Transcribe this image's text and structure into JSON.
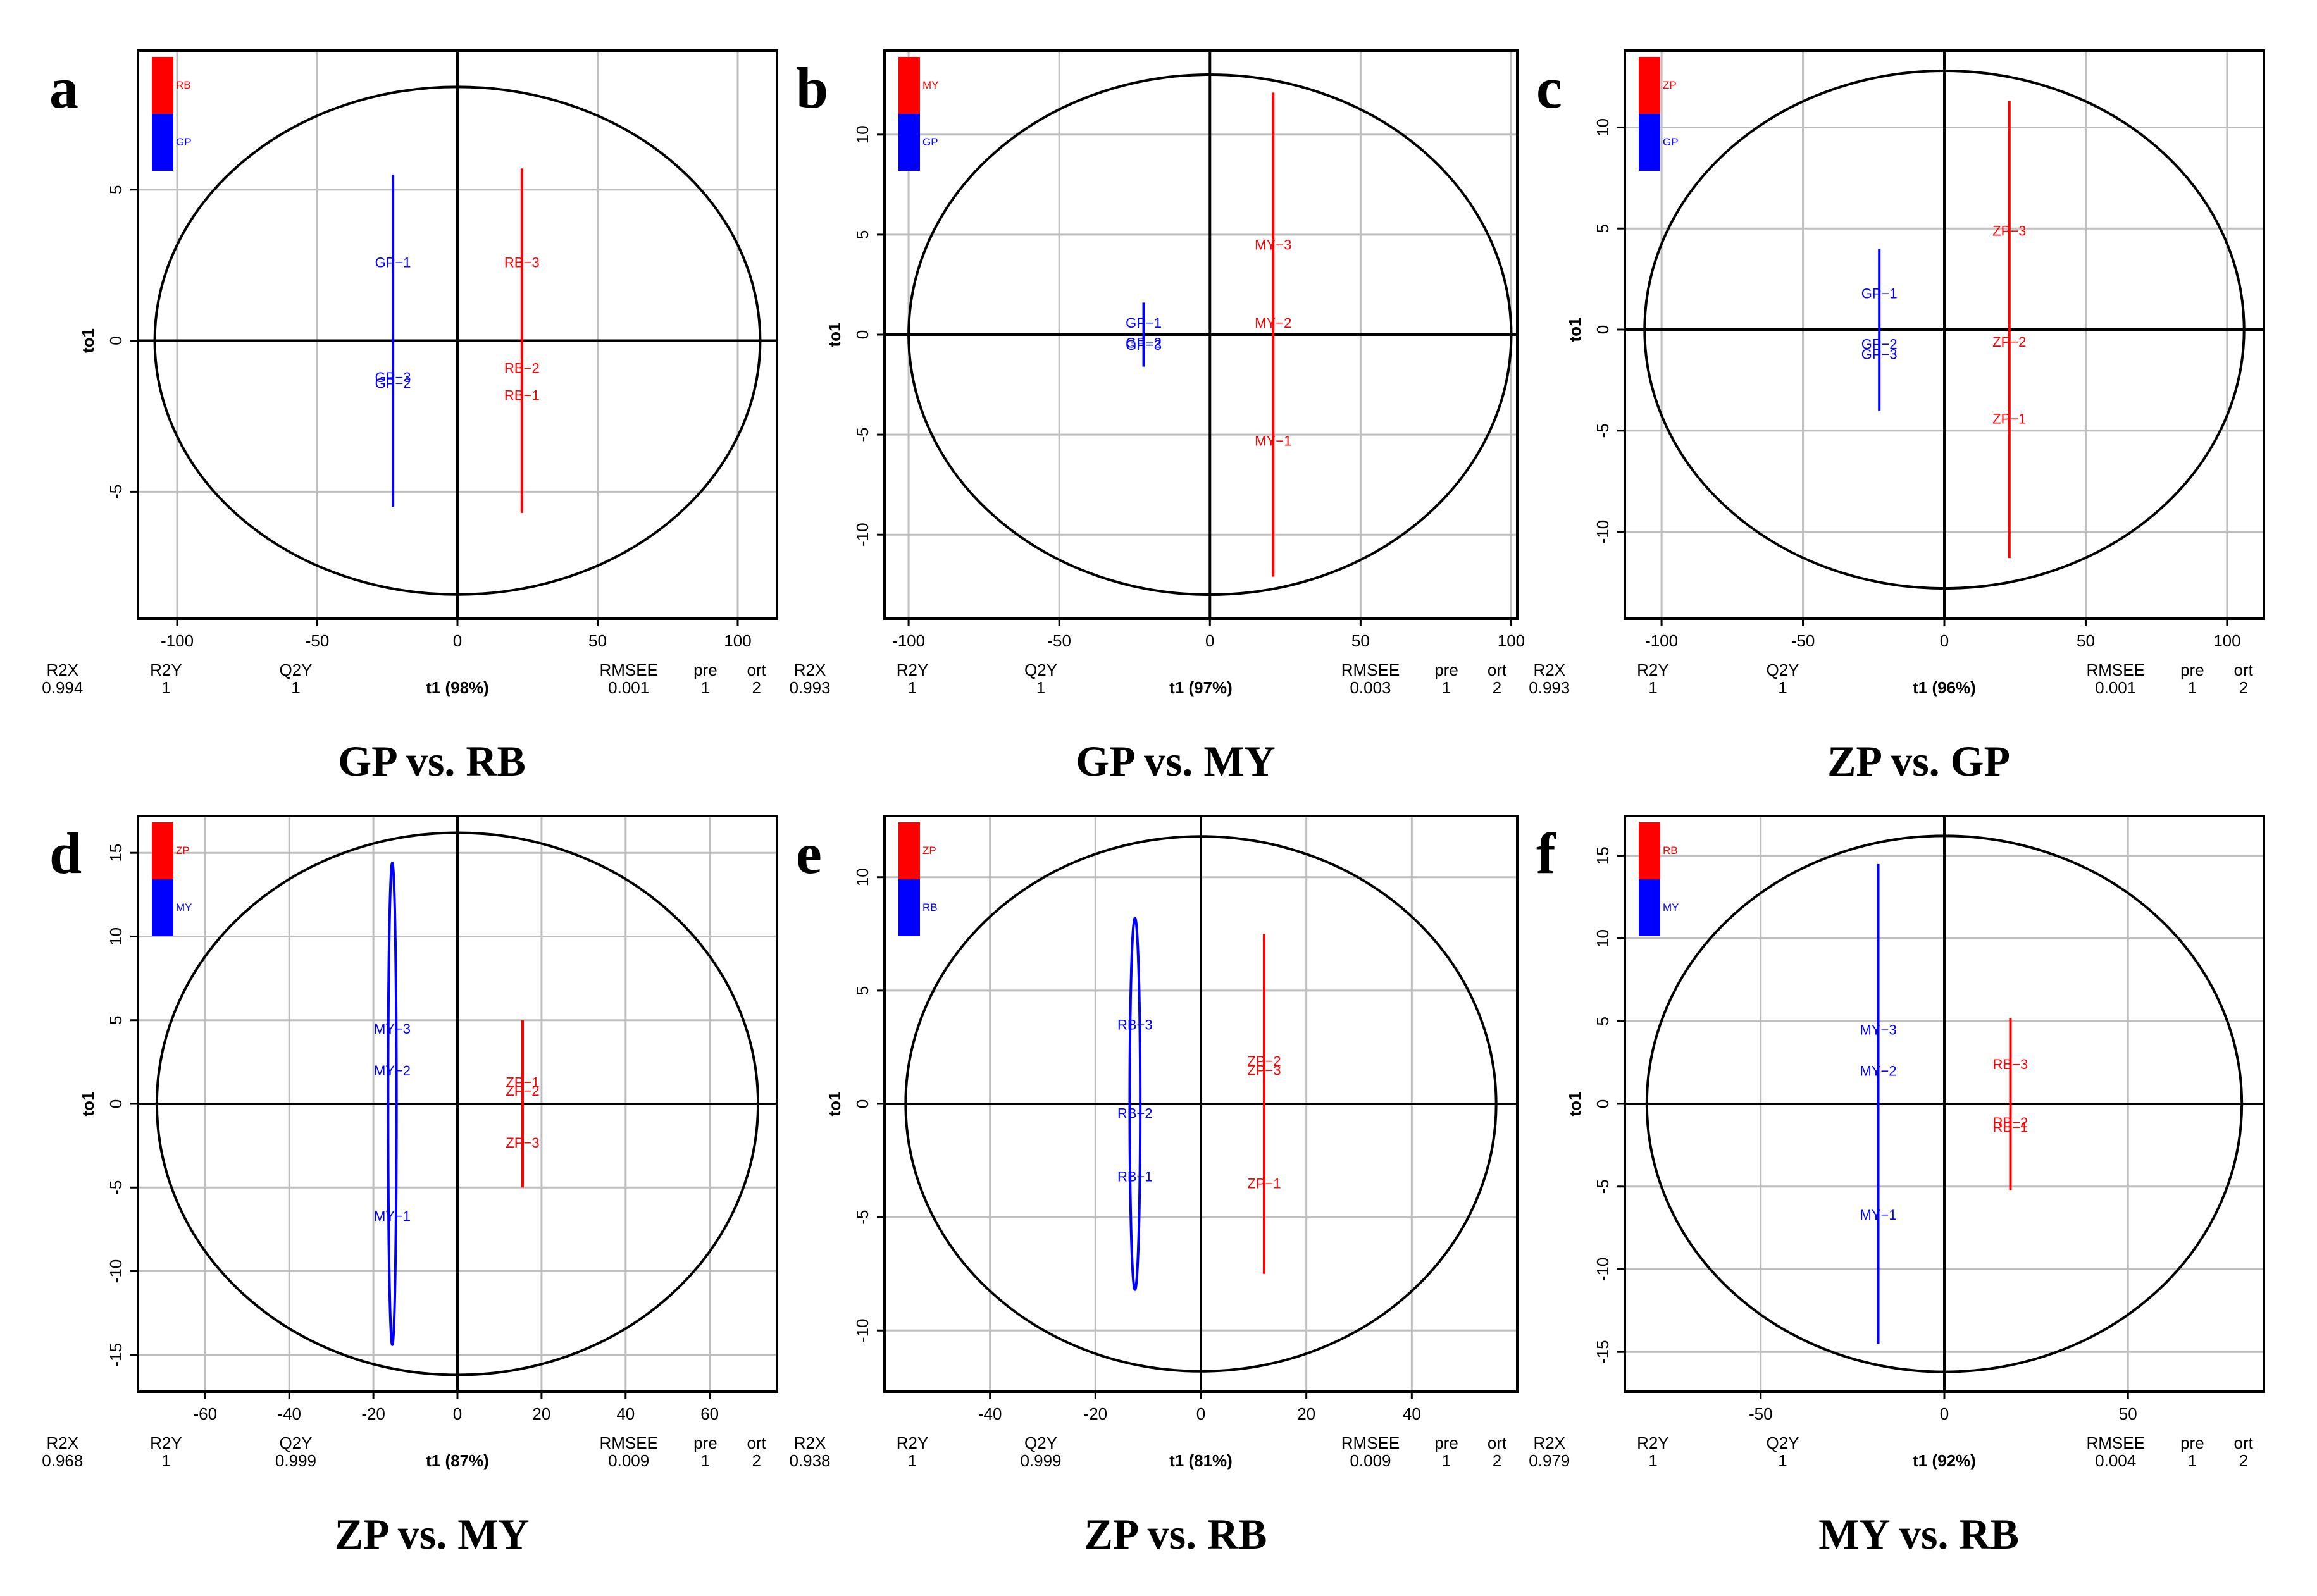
{
  "figure": {
    "colors": {
      "red": "#ff0000",
      "blue": "#0000ff",
      "black": "#000000",
      "grid": "#bebebe"
    },
    "stat_headers": [
      "R2X",
      "R2Y",
      "Q2Y",
      "RMSEE",
      "pre",
      "ort"
    ],
    "y_axis_label": "to1"
  },
  "chart_data": [
    {
      "type": "scatter",
      "letter": "a",
      "title": "GP vs. RB",
      "legend": [
        "RB",
        "GP"
      ],
      "xlim": [
        -114,
        114
      ],
      "ylim": [
        -9.2,
        9.6
      ],
      "xticks": [
        -100,
        -50,
        0,
        50,
        100
      ],
      "yticks": [
        -5,
        0,
        5
      ],
      "ellipse": {
        "a": 108,
        "b": 8.4
      },
      "xlabel": "t1 (98%)",
      "stats": {
        "R2X": "0.994",
        "R2Y": "1",
        "Q2Y": "1",
        "RMSEE": "0.001",
        "pre": "1",
        "ort": "2"
      },
      "groups": [
        {
          "color": "blue",
          "x": -23,
          "line": [
            -5.5,
            5.5
          ],
          "points": [
            {
              "label": "GP−1",
              "y": 2.6
            },
            {
              "label": "GP−3",
              "y": -1.2
            },
            {
              "label": "GP−2",
              "y": -1.4
            }
          ]
        },
        {
          "color": "red",
          "x": 23,
          "line": [
            -5.7,
            5.7
          ],
          "points": [
            {
              "label": "RB−3",
              "y": 2.6
            },
            {
              "label": "RB−2",
              "y": -0.9
            },
            {
              "label": "RB−1",
              "y": -1.8
            }
          ]
        }
      ]
    },
    {
      "type": "scatter",
      "letter": "b",
      "title": "GP vs. MY",
      "legend": [
        "MY",
        "GP"
      ],
      "xlim": [
        -108,
        102
      ],
      "ylim": [
        -14.2,
        14.2
      ],
      "xticks": [
        -100,
        -50,
        0,
        50,
        100
      ],
      "yticks": [
        -10,
        -5,
        0,
        5,
        10
      ],
      "ellipse": {
        "a": 100,
        "b": 13
      },
      "xlabel": "t1 (97%)",
      "stats": {
        "R2X": "0.993",
        "R2Y": "1",
        "Q2Y": "1",
        "RMSEE": "0.003",
        "pre": "1",
        "ort": "2"
      },
      "groups": [
        {
          "color": "blue",
          "x": -22,
          "line": [
            -1.6,
            1.6
          ],
          "points": [
            {
              "label": "GP−1",
              "y": 0.6
            },
            {
              "label": "GP−2",
              "y": -0.4
            },
            {
              "label": "GP−3",
              "y": -0.5
            }
          ]
        },
        {
          "color": "red",
          "x": 21,
          "line": [
            -12.1,
            12.1
          ],
          "points": [
            {
              "label": "MY−3",
              "y": 4.5
            },
            {
              "label": "MY−2",
              "y": 0.6
            },
            {
              "label": "MY−1",
              "y": -5.3
            }
          ]
        }
      ]
    },
    {
      "type": "scatter",
      "letter": "c",
      "title": "ZP vs. GP",
      "legend": [
        "ZP",
        "GP"
      ],
      "xlim": [
        -113,
        113
      ],
      "ylim": [
        -14.3,
        13.8
      ],
      "xticks": [
        -100,
        -50,
        0,
        50,
        100
      ],
      "yticks": [
        -10,
        -5,
        0,
        5,
        10
      ],
      "ellipse": {
        "a": 106,
        "b": 12.8
      },
      "xlabel": "t1 (96%)",
      "stats": {
        "R2X": "0.993",
        "R2Y": "1",
        "Q2Y": "1",
        "RMSEE": "0.001",
        "pre": "1",
        "ort": "2"
      },
      "groups": [
        {
          "color": "blue",
          "x": -23,
          "line": [
            -4,
            4
          ],
          "points": [
            {
              "label": "GP−1",
              "y": 1.8
            },
            {
              "label": "GP−2",
              "y": -0.7
            },
            {
              "label": "GP−3",
              "y": -1.2
            }
          ]
        },
        {
          "color": "red",
          "x": 23,
          "line": [
            -11.3,
            11.3
          ],
          "points": [
            {
              "label": "ZP−3",
              "y": 4.9
            },
            {
              "label": "ZP−2",
              "y": -0.6
            },
            {
              "label": "ZP−1",
              "y": -4.4
            }
          ]
        }
      ]
    },
    {
      "type": "scatter",
      "letter": "d",
      "title": "ZP vs. MY",
      "legend": [
        "ZP",
        "MY"
      ],
      "xlim": [
        -76,
        76
      ],
      "ylim": [
        -17.2,
        17.2
      ],
      "xticks": [
        -60,
        -40,
        -20,
        0,
        20,
        40,
        60
      ],
      "yticks": [
        -15,
        -10,
        -5,
        0,
        5,
        10,
        15
      ],
      "ellipse": {
        "a": 71.5,
        "b": 16.2
      },
      "xlabel": "t1 (87%)",
      "stats": {
        "R2X": "0.968",
        "R2Y": "1",
        "Q2Y": "0.999",
        "RMSEE": "0.009",
        "pre": "1",
        "ort": "2"
      },
      "groups": [
        {
          "color": "blue",
          "x": -15.5,
          "ellipseGroup": {
            "rx": 1.0,
            "ry": 14.4
          },
          "line": [
            -14.4,
            14.4
          ],
          "points": [
            {
              "label": "MY−3",
              "y": 4.5
            },
            {
              "label": "MY−2",
              "y": 2.0
            },
            {
              "label": "MY−1",
              "y": -6.7
            }
          ]
        },
        {
          "color": "red",
          "x": 15.5,
          "line": [
            -5,
            5
          ],
          "points": [
            {
              "label": "ZP−1",
              "y": 1.3
            },
            {
              "label": "ZP−2",
              "y": 0.8
            },
            {
              "label": "ZP−3",
              "y": -2.3
            }
          ]
        }
      ]
    },
    {
      "type": "scatter",
      "letter": "e",
      "title": "ZP vs. RB",
      "legend": [
        "ZP",
        "RB"
      ],
      "xlim": [
        -60,
        60
      ],
      "ylim": [
        -12.7,
        12.7
      ],
      "xticks": [
        -40,
        -20,
        0,
        20,
        40
      ],
      "yticks": [
        -10,
        -5,
        0,
        5,
        10
      ],
      "ellipse": {
        "a": 56,
        "b": 11.8
      },
      "xlabel": "t1 (81%)",
      "stats": {
        "R2X": "0.938",
        "R2Y": "1",
        "Q2Y": "0.999",
        "RMSEE": "0.009",
        "pre": "1",
        "ort": "2"
      },
      "groups": [
        {
          "color": "blue",
          "x": -12.5,
          "ellipseGroup": {
            "rx": 1.0,
            "ry": 8.2
          },
          "line": [
            -8.2,
            8.2
          ],
          "points": [
            {
              "label": "RB−3",
              "y": 3.5
            },
            {
              "label": "RB−2",
              "y": -0.4
            },
            {
              "label": "RB−1",
              "y": -3.2
            }
          ]
        },
        {
          "color": "red",
          "x": 12,
          "line": [
            -7.5,
            7.5
          ],
          "points": [
            {
              "label": "ZP−2",
              "y": 1.9
            },
            {
              "label": "ZP−3",
              "y": 1.5
            },
            {
              "label": "ZP−1",
              "y": -3.5
            }
          ]
        }
      ]
    },
    {
      "type": "scatter",
      "letter": "f",
      "title": "MY vs. RB",
      "legend": [
        "RB",
        "MY"
      ],
      "xlim": [
        -87,
        87
      ],
      "ylim": [
        -17.4,
        17.4
      ],
      "xticks": [
        -50,
        0,
        50
      ],
      "yticks": [
        -15,
        -10,
        -5,
        0,
        5,
        10,
        15
      ],
      "ellipse": {
        "a": 81,
        "b": 16.2
      },
      "xlabel": "t1 (92%)",
      "stats": {
        "R2X": "0.979",
        "R2Y": "1",
        "Q2Y": "1",
        "RMSEE": "0.004",
        "pre": "1",
        "ort": "2"
      },
      "groups": [
        {
          "color": "blue",
          "x": -18,
          "line": [
            -14.5,
            14.5
          ],
          "points": [
            {
              "label": "MY−3",
              "y": 4.5
            },
            {
              "label": "MY−2",
              "y": 2.0
            },
            {
              "label": "MY−1",
              "y": -6.7
            }
          ]
        },
        {
          "color": "red",
          "x": 18,
          "line": [
            -5.2,
            5.2
          ],
          "points": [
            {
              "label": "RB−3",
              "y": 2.4
            },
            {
              "label": "RB−2",
              "y": -1.1
            },
            {
              "label": "RB−1",
              "y": -1.4
            }
          ]
        }
      ]
    }
  ]
}
